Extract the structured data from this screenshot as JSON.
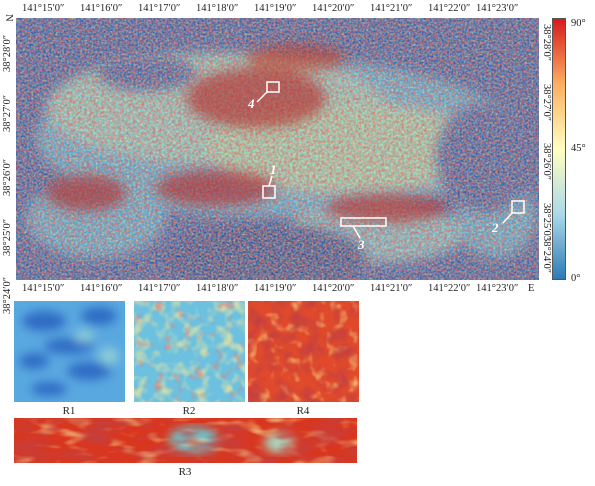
{
  "map": {
    "north_label": "N",
    "east_label": "E",
    "lon_ticks_top": [
      "141°15′0″",
      "141°16′0″",
      "141°17′0″",
      "141°18′0″",
      "141°19′0″",
      "141°20′0″",
      "141°21′0″",
      "141°22′0″",
      "141°23′0″"
    ],
    "lon_ticks_bottom": [
      "141°15′0″",
      "141°16′0″",
      "141°17′0″",
      "141°18′0″",
      "141°19′0″",
      "141°20′0″",
      "141°21′0″",
      "141°22′0″",
      "141°23′0″"
    ],
    "lat_ticks_left": [
      "38°28′0″",
      "38°27′0″",
      "38°26′0″",
      "38°25′0″",
      "38°24′0″"
    ],
    "lat_ticks_right": [
      "38°28′0″",
      "38°27′0″",
      "38°26′0″",
      "38°25′0″",
      "38°24′0″"
    ],
    "region_markers": [
      {
        "id": "1",
        "label": "1"
      },
      {
        "id": "2",
        "label": "2"
      },
      {
        "id": "3",
        "label": "3"
      },
      {
        "id": "4",
        "label": "4"
      }
    ]
  },
  "colorbar": {
    "max_label": "90°",
    "mid_label": "45°",
    "min_label": "0°",
    "colors": [
      "#d7191c",
      "#fdae61",
      "#ffffbf",
      "#abd9e9",
      "#2c7bb6"
    ]
  },
  "subsets": {
    "r1": "R1",
    "r2": "R2",
    "r4": "R4",
    "r3": "R3"
  }
}
